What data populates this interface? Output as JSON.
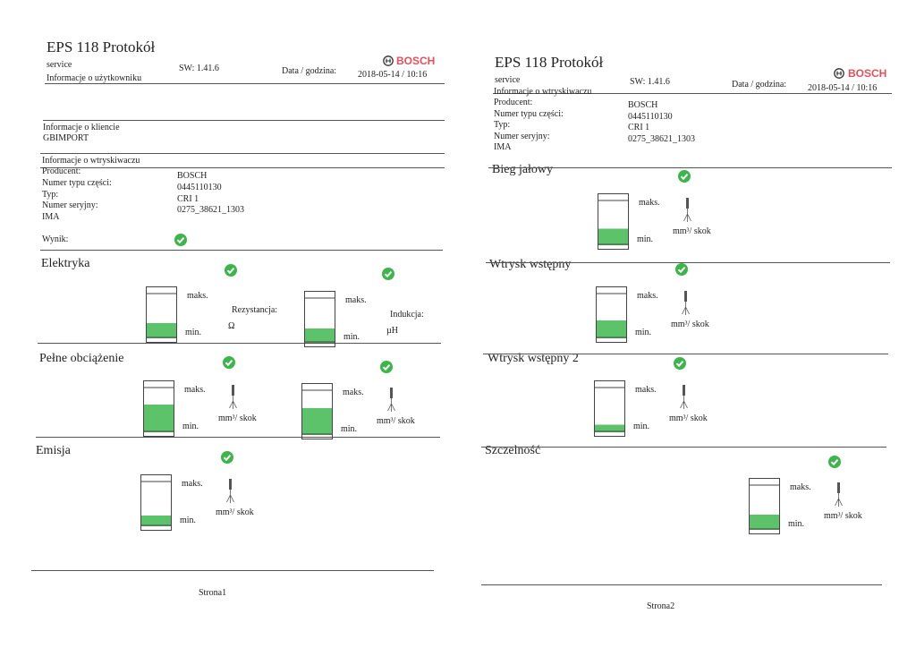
{
  "pages": [
    {
      "title": "EPS 118 Protokół",
      "brand": "BOSCH",
      "service": "service",
      "user_info": "Informacje o użytkowniku",
      "sw": "SW: 1.41.6",
      "date_label": "Data / godzina:",
      "date": "2018-05-14 / 10:16",
      "client": {
        "heading": "Informacje o kliencie",
        "name": "GBIMPORT"
      },
      "injector": {
        "heading": "Informacje o wtryskiwaczu",
        "fields": [
          {
            "label": "Producent:",
            "value": "BOSCH"
          },
          {
            "label": "Numer typu części:",
            "value": "0445110130"
          },
          {
            "label": "Typ:",
            "value": "CRI 1"
          },
          {
            "label": "Numer seryjny:",
            "value": "0275_38621_1303"
          },
          {
            "label": "IMA"
          }
        ]
      },
      "result_label": "Wynik:",
      "sections": [
        {
          "title": "Elektryka",
          "gauges": [
            {
              "max": "maks.",
              "min": "min.",
              "label": "Rezystancja:",
              "unit": "Ω"
            },
            {
              "max": "maks.",
              "min": "min.",
              "label": "Indukcja:",
              "unit": "µH"
            }
          ]
        },
        {
          "title": "Pełne obciążenie",
          "gauges": [
            {
              "max": "maks.",
              "min": "min.",
              "unit": "mm³/ skok"
            },
            {
              "max": "maks.",
              "min": "min.",
              "unit": "mm³/ skok"
            }
          ]
        },
        {
          "title": "Emisja",
          "gauges": [
            {
              "max": "maks.",
              "min": "min.",
              "unit": "mm³/ skok"
            }
          ]
        }
      ],
      "footer": "Strona1"
    },
    {
      "title": "EPS 118 Protokół",
      "brand": "BOSCH",
      "service": "service",
      "sw": "SW: 1.41.6",
      "date_label": "Data / godzina:",
      "date": "2018-05-14 / 10:16",
      "injector": {
        "heading": "Informacje o wtryskiwaczu",
        "fields": [
          {
            "label": "Producent:",
            "value": "BOSCH"
          },
          {
            "label": "Numer typu części:",
            "value": "0445110130"
          },
          {
            "label": "Typ:",
            "value": "CRI 1"
          },
          {
            "label": "Numer seryjny:",
            "value": "0275_38621_1303"
          },
          {
            "label": "IMA"
          }
        ]
      },
      "sections": [
        {
          "title": "Bieg jałowy",
          "gauges": [
            {
              "max": "maks.",
              "min": "min.",
              "unit": "mm³/ skok"
            }
          ]
        },
        {
          "title": "Wtrysk wstępny",
          "gauges": [
            {
              "max": "maks.",
              "min": "min.",
              "unit": "mm³/ skok"
            }
          ]
        },
        {
          "title": "Wtrysk wstępny 2",
          "gauges": [
            {
              "max": "maks.",
              "min": "min.",
              "unit": "mm³/ skok"
            }
          ]
        },
        {
          "title": "Szczelność",
          "gauges": [
            {
              "max": "maks.",
              "min": "min.",
              "unit": "mm³/ skok"
            }
          ]
        }
      ],
      "footer": "Strona2"
    }
  ]
}
